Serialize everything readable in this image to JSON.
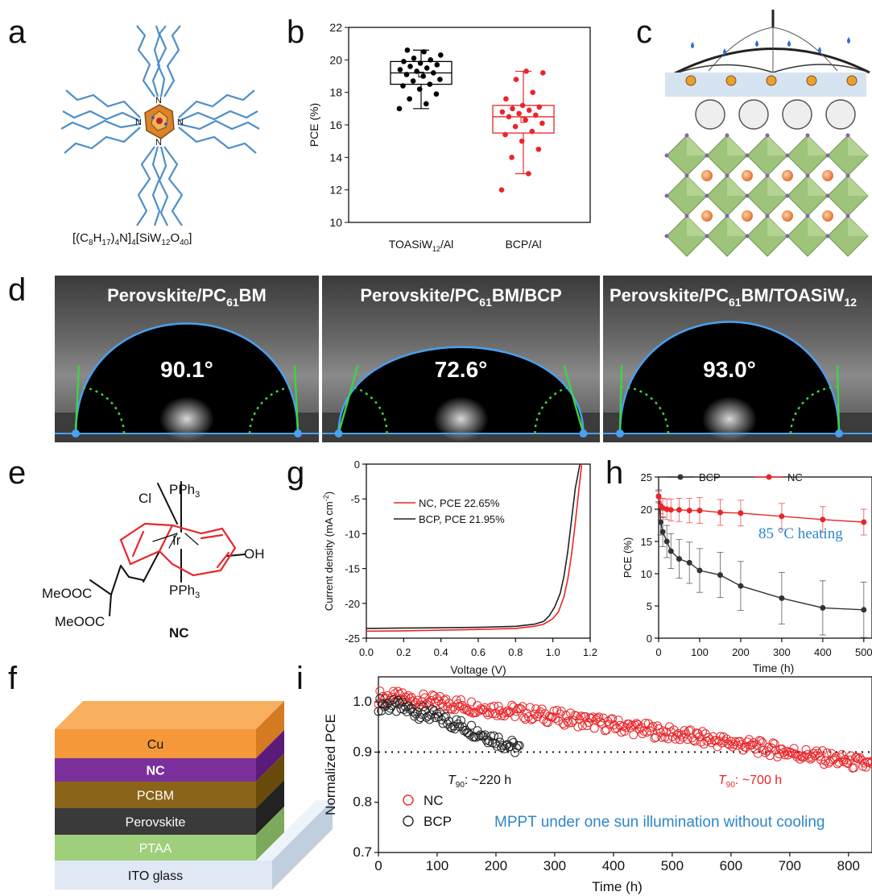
{
  "panels": {
    "a": {
      "letter": "a",
      "formula_main": "[(C",
      "formula_sub1": "8",
      "formula_mid1": "H",
      "formula_sub2": "17",
      "formula_mid2": ")",
      "formula_sub3": "4",
      "formula_mid3": "N]",
      "formula_sub4": "4",
      "formula_mid4": "[SiW",
      "formula_sub5": "12",
      "formula_mid5": "O",
      "formula_sub6": "40",
      "formula_end": "]",
      "atom_label": "N",
      "atom_charge": "+"
    },
    "b": {
      "letter": "b"
    },
    "c": {
      "letter": "c"
    },
    "d": {
      "letter": "d",
      "images": [
        {
          "title_pre": "Perovskite/PC",
          "title_sub": "61",
          "title_post": "BM",
          "angle": "90.1°"
        },
        {
          "title_pre": "Perovskite/PC",
          "title_sub": "61",
          "title_post": "BM/BCP",
          "angle": "72.6°"
        },
        {
          "title_pre": "Perovskite/PC",
          "title_sub": "61",
          "title_post": "BM/TOASiW",
          "title_sub2": "12",
          "angle": "93.0°"
        }
      ]
    },
    "e": {
      "letter": "e",
      "pph3": "PPh",
      "pph3_sub": "3",
      "cl": "Cl",
      "ir": "Ir",
      "oh": "OH",
      "ester1": "MeOOC",
      "ester2": "MeOOC",
      "name": "NC"
    },
    "f": {
      "letter": "f",
      "layers": [
        "Cu",
        "NC",
        "PCBM",
        "Perovskite",
        "PTAA",
        "ITO glass"
      ]
    },
    "g": {
      "letter": "g"
    },
    "h": {
      "letter": "h",
      "annotation": "85 °C heating"
    },
    "i": {
      "letter": "i",
      "annotation": "MPPT under one sun illumination without cooling",
      "t90_bcp_value": ": ~220 h",
      "t90_nc_value": ": ~700 h",
      "t90_label": "T",
      "t90_sub": "90"
    }
  },
  "chart_data": [
    {
      "id": "b",
      "type": "box",
      "categories": [
        "TOASiW12/Al",
        "BCP/Al"
      ],
      "category_labels": [
        {
          "pre": "TOASiW",
          "sub": "12",
          "post": "/Al"
        },
        {
          "pre": "BCP/Al",
          "sub": "",
          "post": ""
        }
      ],
      "ylabel": "PCE (%)",
      "ylim": [
        10,
        22
      ],
      "yticks": [
        10,
        12,
        14,
        16,
        18,
        20,
        22
      ],
      "colors": [
        "#000000",
        "#e8262a"
      ],
      "boxes": [
        {
          "q1": 18.5,
          "median": 19.2,
          "q3": 19.9,
          "min": 17.0,
          "max": 20.6,
          "mean": 19.1
        },
        {
          "q1": 15.5,
          "median": 16.5,
          "q3": 17.2,
          "min": 13.0,
          "max": 19.3,
          "mean": 16.3
        }
      ],
      "points": [
        [
          17.0,
          17.3,
          17.6,
          17.9,
          18.2,
          18.4,
          18.5,
          18.7,
          18.8,
          19.0,
          19.1,
          19.2,
          19.3,
          19.4,
          19.5,
          19.6,
          19.7,
          19.8,
          19.9,
          20.0,
          20.1,
          20.3,
          20.5,
          20.6
        ],
        [
          12.0,
          13.0,
          14.0,
          14.5,
          15.0,
          15.4,
          15.6,
          15.9,
          16.1,
          16.3,
          16.5,
          16.6,
          16.7,
          16.8,
          16.9,
          17.0,
          17.1,
          17.2,
          17.6,
          18.0,
          18.8,
          19.2,
          19.3
        ]
      ]
    },
    {
      "id": "g",
      "type": "line",
      "xlabel": "Voltage (V)",
      "ylabel": "Current density (mA cm",
      "ylabel_sup": "-2",
      "ylabel_end": ")",
      "xlim": [
        0.0,
        1.2
      ],
      "ylim": [
        -25,
        0
      ],
      "xticks": [
        0.0,
        0.2,
        0.4,
        0.6,
        0.8,
        1.0,
        1.2
      ],
      "yticks": [
        0,
        -5,
        -10,
        -15,
        -20,
        -25
      ],
      "series": [
        {
          "name": "NC, PCE 22.65%",
          "color": "#e8262a",
          "x": [
            0.0,
            0.2,
            0.4,
            0.6,
            0.8,
            0.9,
            0.95,
            1.0,
            1.03,
            1.06,
            1.08,
            1.1,
            1.12,
            1.14,
            1.155
          ],
          "y": [
            -24.0,
            -23.95,
            -23.85,
            -23.75,
            -23.6,
            -23.3,
            -23.0,
            -22.2,
            -21.2,
            -19.0,
            -16.5,
            -13.0,
            -8.5,
            -3.5,
            0.0
          ]
        },
        {
          "name": "BCP, PCE 21.95%",
          "color": "#222222",
          "x": [
            0.0,
            0.2,
            0.4,
            0.6,
            0.8,
            0.9,
            0.95,
            0.98,
            1.01,
            1.04,
            1.06,
            1.08,
            1.1,
            1.12,
            1.145
          ],
          "y": [
            -23.6,
            -23.55,
            -23.5,
            -23.45,
            -23.3,
            -23.0,
            -22.6,
            -21.8,
            -20.5,
            -18.5,
            -16.0,
            -12.5,
            -8.0,
            -3.5,
            0.0
          ]
        }
      ]
    },
    {
      "id": "h",
      "type": "line",
      "xlabel": "Time (h)",
      "ylabel": "PCE (%)",
      "xlim": [
        0,
        520
      ],
      "ylim": [
        0,
        25
      ],
      "xticks": [
        0,
        100,
        200,
        300,
        400,
        500
      ],
      "yticks": [
        0,
        5,
        10,
        15,
        20,
        25
      ],
      "series": [
        {
          "name": "BCP",
          "color": "#333333",
          "x": [
            0,
            5,
            10,
            20,
            30,
            50,
            75,
            100,
            150,
            200,
            300,
            400,
            500
          ],
          "y": [
            22.0,
            18.0,
            16.5,
            15.0,
            13.5,
            12.3,
            11.7,
            10.5,
            9.8,
            8.1,
            6.2,
            4.7,
            4.4
          ],
          "err": [
            1.0,
            2.0,
            2.3,
            2.5,
            2.7,
            3.0,
            3.2,
            3.4,
            3.5,
            3.8,
            4.0,
            4.2,
            4.3
          ]
        },
        {
          "name": "NC",
          "color": "#e8262a",
          "x": [
            0,
            5,
            10,
            20,
            30,
            50,
            75,
            100,
            150,
            200,
            300,
            400,
            500
          ],
          "y": [
            22.0,
            20.5,
            20.2,
            20.0,
            19.9,
            19.9,
            19.8,
            19.8,
            19.5,
            19.4,
            18.9,
            18.4,
            18.0
          ],
          "err": [
            0.8,
            1.2,
            1.5,
            1.6,
            1.7,
            1.8,
            1.9,
            2.0,
            2.0,
            2.0,
            2.0,
            2.0,
            2.0
          ]
        }
      ]
    },
    {
      "id": "i",
      "type": "scatter",
      "xlabel": "Time (h)",
      "ylabel": "Normalized PCE",
      "xlim": [
        0,
        840
      ],
      "ylim": [
        0.7,
        1.05
      ],
      "xticks": [
        0,
        100,
        200,
        300,
        400,
        500,
        600,
        700,
        800
      ],
      "yticks": [
        0.7,
        0.8,
        0.9,
        1.0
      ],
      "reference_y": 0.9,
      "series": [
        {
          "name": "NC",
          "color": "#e8262a",
          "start": 1.01,
          "end": 0.873,
          "x_end": 840
        },
        {
          "name": "BCP",
          "color": "#222222",
          "start": 0.995,
          "end": 0.905,
          "x_end": 240
        }
      ]
    }
  ]
}
